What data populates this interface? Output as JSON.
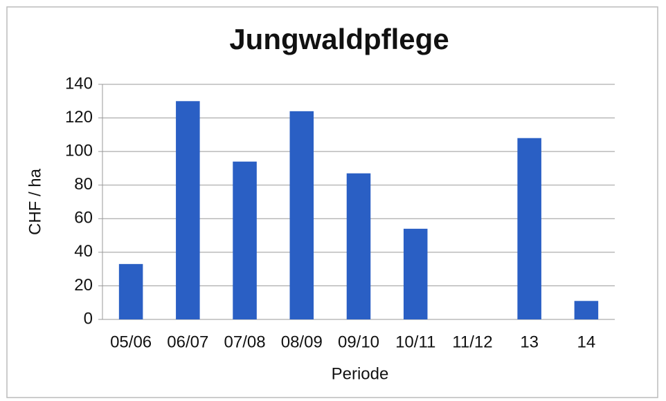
{
  "chart_data": {
    "type": "bar",
    "title": "Jungwaldpflege",
    "x_label": "Periode",
    "y_label": "CHF / ha",
    "categories": [
      "05/06",
      "06/07",
      "07/08",
      "08/09",
      "09/10",
      "10/11",
      "11/12",
      "13",
      "14"
    ],
    "values": [
      33,
      130,
      94,
      124,
      87,
      54,
      0,
      108,
      11
    ],
    "color": "#2a5fc4",
    "ylim": [
      0,
      140
    ],
    "yticks": [
      0,
      20,
      40,
      60,
      80,
      100,
      120,
      140
    ],
    "grid": true
  }
}
